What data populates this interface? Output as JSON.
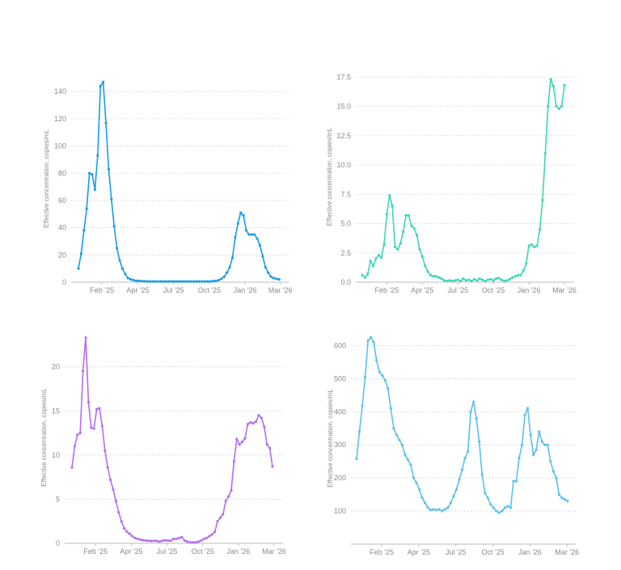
{
  "chart_data": [
    {
      "type": "line",
      "y_label": "Effective concentration, copies/mL",
      "color": "#1a9be6",
      "grid": true,
      "values": [
        10,
        21,
        38,
        54,
        80,
        79,
        68,
        93,
        144,
        147,
        117,
        83,
        61,
        41,
        25,
        16,
        10,
        6,
        3,
        2,
        1.5,
        1,
        1,
        0.8,
        0.7,
        0.6,
        0.5,
        0.5,
        0.5,
        0.5,
        0.5,
        0.5,
        0.5,
        0.5,
        0.5,
        0.5,
        0.5,
        0.5,
        0.5,
        0.5,
        0.5,
        0.5,
        0.5,
        0.5,
        0.5,
        0.5,
        0.5,
        0.5,
        0.6,
        0.8,
        1,
        1.5,
        2.5,
        4,
        7,
        11,
        18,
        33,
        43,
        51,
        49,
        38,
        35,
        35,
        35,
        32,
        27,
        19,
        11,
        7,
        4,
        3,
        2.5,
        2
      ],
      "xlim": [
        0,
        73.5
      ],
      "xticks": [
        {
          "value": 8.6,
          "label": "Feb '25"
        },
        {
          "value": 21.6,
          "label": "Apr '25"
        },
        {
          "value": 34.6,
          "label": "Jul '25"
        },
        {
          "value": 47.6,
          "label": "Oct '25"
        },
        {
          "value": 60.6,
          "label": "Jan '26"
        },
        {
          "value": 73.4,
          "label": "Mar '26"
        }
      ],
      "ylim": [
        0,
        152
      ],
      "yticks": [
        0,
        20,
        40,
        60,
        80,
        100,
        120,
        140
      ]
    },
    {
      "type": "line",
      "y_label": "Effective concentration, copies/mL",
      "color": "#3dd6b8",
      "grid": true,
      "values": [
        0.6,
        0.4,
        0.7,
        1.8,
        1.4,
        2,
        2.3,
        2.1,
        3.2,
        5.8,
        7.4,
        6.5,
        3,
        2.8,
        3.3,
        4.3,
        5.7,
        5.7,
        4.8,
        4.6,
        4,
        2.8,
        2.2,
        1.4,
        0.9,
        0.6,
        0.5,
        0.5,
        0.4,
        0.3,
        0.15,
        0.1,
        0.15,
        0.1,
        0.15,
        0.2,
        0.1,
        0.3,
        0.15,
        0.2,
        0.1,
        0.25,
        0.15,
        0.3,
        0.2,
        0.1,
        0.2,
        0.25,
        0.15,
        0.3,
        0.35,
        0.2,
        0.1,
        0.15,
        0.25,
        0.4,
        0.5,
        0.6,
        0.6,
        1,
        1.6,
        3.1,
        3.2,
        3,
        3.1,
        4.5,
        7,
        11,
        15,
        17.3,
        16.7,
        15,
        14.8,
        15,
        16.8
      ],
      "xlim": [
        0,
        74
      ],
      "xticks": [
        {
          "value": 9,
          "label": "Feb '25"
        },
        {
          "value": 22,
          "label": "Apr '25"
        },
        {
          "value": 35,
          "label": "Jul '25"
        },
        {
          "value": 48,
          "label": "Oct '25"
        },
        {
          "value": 61,
          "label": "Jan '26"
        },
        {
          "value": 74,
          "label": "Mar '26"
        }
      ],
      "ylim": [
        0,
        18
      ],
      "yticks": [
        {
          "value": 0,
          "label": "0.0"
        },
        2.5,
        {
          "value": 5,
          "label": "5.0"
        },
        7.5,
        {
          "value": 10,
          "label": "10.0"
        },
        12.5,
        {
          "value": 15,
          "label": "15.0"
        },
        17.5
      ]
    },
    {
      "type": "line",
      "y_label": "Effective concentration, copies/mL",
      "color": "#b66df0",
      "grid": true,
      "values": [
        8.6,
        11,
        12.3,
        12.5,
        19.5,
        23.3,
        16,
        13.1,
        13,
        15.2,
        15.3,
        13.3,
        10.5,
        8.6,
        7.2,
        6.1,
        4.8,
        3.5,
        2.5,
        1.7,
        1.3,
        1.1,
        0.8,
        0.6,
        0.5,
        0.4,
        0.35,
        0.3,
        0.3,
        0.25,
        0.3,
        0.25,
        0.2,
        0.3,
        0.35,
        0.3,
        0.3,
        0.5,
        0.5,
        0.6,
        0.7,
        0.3,
        0.2,
        0.1,
        0.1,
        0.1,
        0.2,
        0.3,
        0.5,
        0.6,
        0.8,
        1,
        1.3,
        2.5,
        2.9,
        3.3,
        4.8,
        5.3,
        6,
        9.3,
        11.8,
        11.2,
        11.5,
        11.9,
        13.5,
        13.7,
        13.6,
        13.8,
        14.5,
        14.2,
        13.2,
        11.2,
        10.8,
        8.7
      ],
      "xlim": [
        0,
        73
      ],
      "xticks": [
        {
          "value": 8.6,
          "label": "Feb '25"
        },
        {
          "value": 21.6,
          "label": "Apr '25"
        },
        {
          "value": 34.6,
          "label": "Jul '25"
        },
        {
          "value": 47.6,
          "label": "Oct '25"
        },
        {
          "value": 60.6,
          "label": "Jan '26"
        },
        {
          "value": 73.6,
          "label": "Mar '26"
        }
      ],
      "ylim": [
        0,
        24
      ],
      "yticks": [
        0,
        5,
        10,
        15,
        20
      ]
    },
    {
      "type": "line",
      "y_label": "Effective concentration, copies/mL",
      "color": "#5bc0ec",
      "grid": true,
      "values": [
        258,
        340,
        418,
        505,
        615,
        625,
        610,
        555,
        520,
        510,
        495,
        470,
        410,
        350,
        330,
        315,
        300,
        270,
        255,
        240,
        200,
        185,
        165,
        140,
        125,
        110,
        103,
        105,
        103,
        105,
        100,
        105,
        110,
        125,
        145,
        165,
        195,
        225,
        260,
        280,
        400,
        430,
        380,
        310,
        210,
        155,
        140,
        120,
        110,
        100,
        95,
        100,
        110,
        115,
        110,
        190,
        190,
        260,
        300,
        390,
        410,
        330,
        270,
        285,
        340,
        310,
        300,
        300,
        250,
        220,
        200,
        150,
        140,
        135,
        130
      ],
      "xlim": [
        0,
        74
      ],
      "xticks": [
        {
          "value": 8.8,
          "label": "Feb '25"
        },
        {
          "value": 21.8,
          "label": "Apr '25"
        },
        {
          "value": 34.8,
          "label": "Jul '25"
        },
        {
          "value": 47.8,
          "label": "Oct '25"
        },
        {
          "value": 60.8,
          "label": "Jan '26"
        },
        {
          "value": 73.8,
          "label": "Mar '26"
        }
      ],
      "ylim": [
        0,
        640
      ],
      "yticks": [
        100,
        200,
        300,
        400,
        500,
        600
      ]
    }
  ]
}
